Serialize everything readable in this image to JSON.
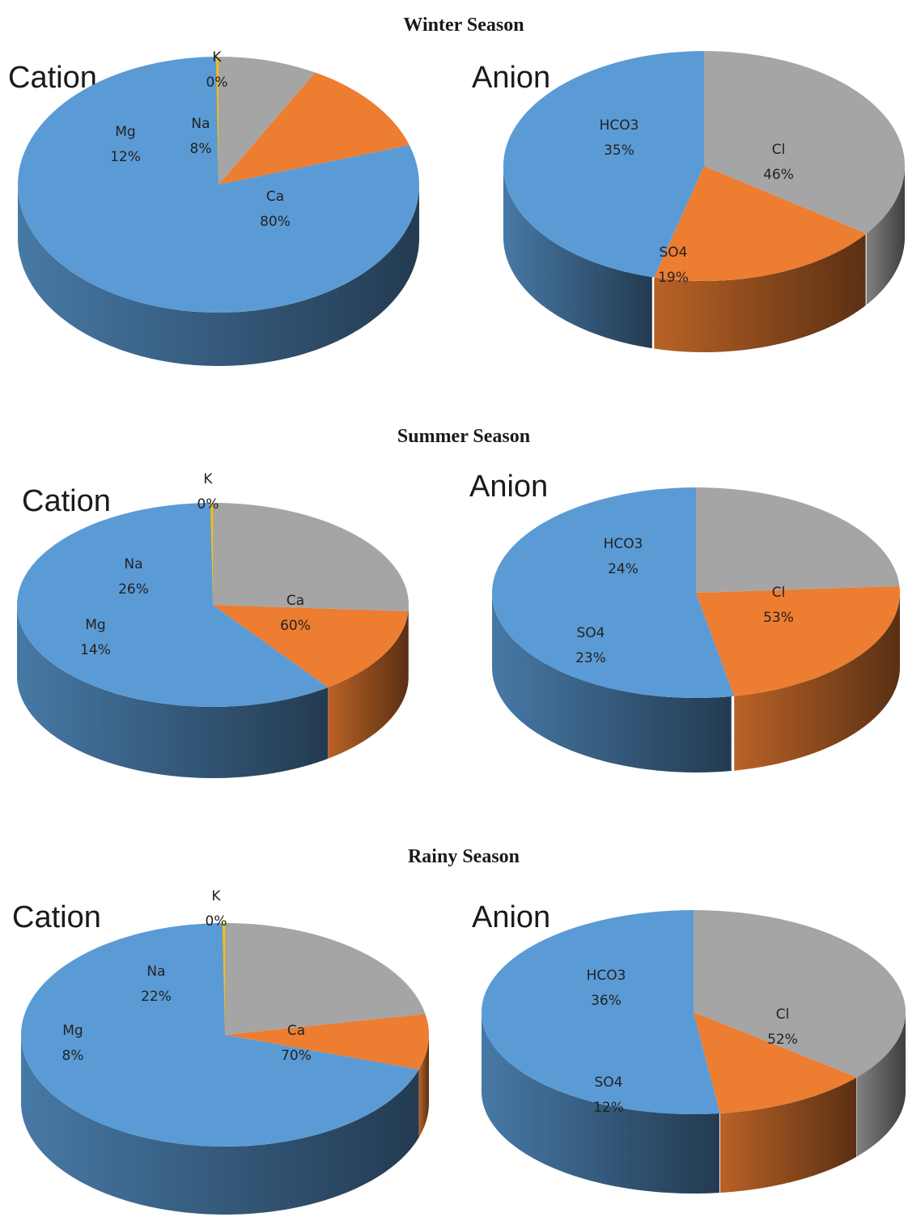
{
  "chart_data": [
    {
      "season": "Winter Season",
      "pies": [
        {
          "type": "pie",
          "title": "Cation",
          "slices": [
            {
              "label": "Ca",
              "value": 80,
              "display": "80%",
              "color": "#5b9bd5"
            },
            {
              "label": "Mg",
              "value": 12,
              "display": "12%",
              "color": "#ed7d31"
            },
            {
              "label": "Na",
              "value": 8,
              "display": "8%",
              "color": "#a5a5a5"
            },
            {
              "label": "K",
              "value": 0,
              "display": "0%",
              "color": "#ffc000"
            }
          ]
        },
        {
          "type": "pie",
          "title": "Anion",
          "slices": [
            {
              "label": "Cl",
              "value": 46,
              "display": "46%",
              "color": "#5b9bd5"
            },
            {
              "label": "SO4",
              "value": 19,
              "display": "19%",
              "color": "#ed7d31"
            },
            {
              "label": "HCO3",
              "value": 35,
              "display": "35%",
              "color": "#a5a5a5"
            }
          ]
        }
      ]
    },
    {
      "season": "Summer Season",
      "pies": [
        {
          "type": "pie",
          "title": "Cation",
          "slices": [
            {
              "label": "Ca",
              "value": 60,
              "display": "60%",
              "color": "#5b9bd5"
            },
            {
              "label": "Mg",
              "value": 14,
              "display": "14%",
              "color": "#ed7d31"
            },
            {
              "label": "Na",
              "value": 26,
              "display": "26%",
              "color": "#a5a5a5"
            },
            {
              "label": "K",
              "value": 0,
              "display": "0%",
              "color": "#ffc000"
            }
          ]
        },
        {
          "type": "pie",
          "title": "Anion",
          "slices": [
            {
              "label": "Cl",
              "value": 53,
              "display": "53%",
              "color": "#5b9bd5"
            },
            {
              "label": "SO4",
              "value": 23,
              "display": "23%",
              "color": "#ed7d31"
            },
            {
              "label": "HCO3",
              "value": 24,
              "display": "24%",
              "color": "#a5a5a5"
            }
          ]
        }
      ]
    },
    {
      "season": "Rainy Season",
      "pies": [
        {
          "type": "pie",
          "title": "Cation",
          "slices": [
            {
              "label": "Ca",
              "value": 70,
              "display": "70%",
              "color": "#5b9bd5"
            },
            {
              "label": "Mg",
              "value": 8,
              "display": "8%",
              "color": "#ed7d31"
            },
            {
              "label": "Na",
              "value": 22,
              "display": "22%",
              "color": "#a5a5a5"
            },
            {
              "label": "K",
              "value": 0,
              "display": "0%",
              "color": "#ffc000"
            }
          ]
        },
        {
          "type": "pie",
          "title": "Anion",
          "slices": [
            {
              "label": "Cl",
              "value": 52,
              "display": "52%",
              "color": "#5b9bd5"
            },
            {
              "label": "SO4",
              "value": 12,
              "display": "12%",
              "color": "#ed7d31"
            },
            {
              "label": "HCO3",
              "value": 36,
              "display": "36%",
              "color": "#a5a5a5"
            }
          ]
        }
      ]
    }
  ]
}
